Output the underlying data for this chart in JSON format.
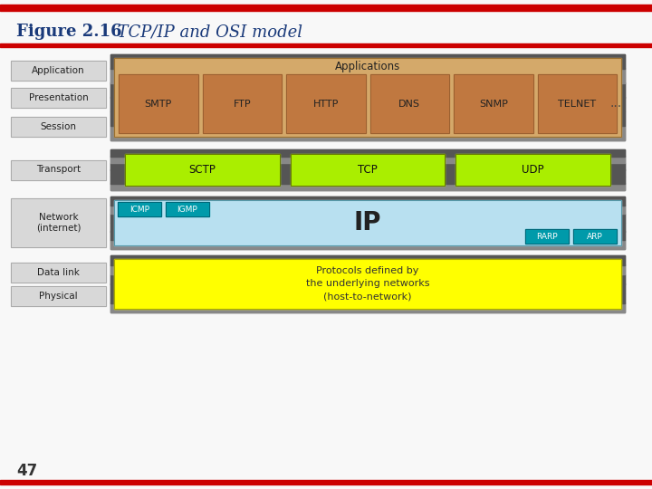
{
  "title_bold": "Figure 2.16",
  "title_italic": "  TCP/IP and OSI model",
  "page_num": "47",
  "red_bar_color": "#cc0000",
  "bg_color": "#f8f8f8",
  "app_layer_bg": "#d4a96a",
  "app_box_bg": "#c07840",
  "app_box_border": "#9a6030",
  "app_protocols": [
    "SMTP",
    "FTP",
    "HTTP",
    "DNS",
    "SNMP",
    "TELNET"
  ],
  "transport_green": "#aaee00",
  "transport_protocols": [
    "SCTP",
    "TCP",
    "UDP"
  ],
  "network_blue": "#b8e0f0",
  "network_teal": "#009aaa",
  "icmp_igmp": [
    "ICMP",
    "IGMP"
  ],
  "arp_rarp": [
    "RARP",
    "ARP"
  ],
  "bottom_yellow": "#ffff00",
  "bottom_text": "Protocols defined by\nthe underlying networks\n(host-to-network)",
  "osi_box_bg": "#d8d8d8",
  "osi_box_border": "#aaaaaa",
  "outer_dark": "#444444",
  "outer_darker": "#222222",
  "grad_dark": "#333333",
  "grad_light": "#888888"
}
